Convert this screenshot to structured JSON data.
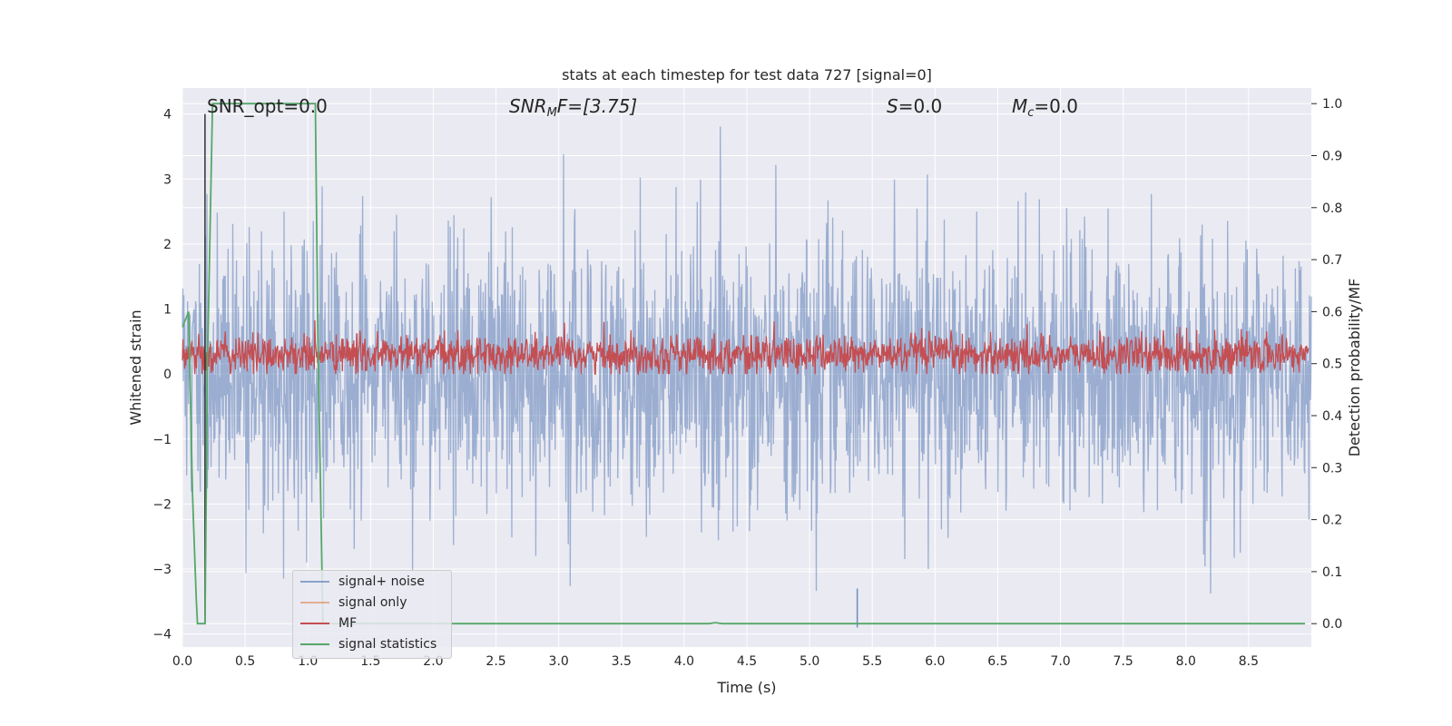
{
  "chart_data": {
    "type": "line",
    "title": "stats at each timestep for test data 727 [signal=0]",
    "xlabel": "Time (s)",
    "ylabel_left": "Whitened strain",
    "ylabel_right": "Detection probability/MF",
    "xlim": [
      0.0,
      9.0
    ],
    "ylim_left": [
      -4.2,
      4.4
    ],
    "ylim_right": [
      -0.045,
      1.03
    ],
    "x_ticks": [
      "0.0",
      "0.5",
      "1.0",
      "1.5",
      "2.0",
      "2.5",
      "3.0",
      "3.5",
      "4.0",
      "4.5",
      "5.0",
      "5.5",
      "6.0",
      "6.5",
      "7.0",
      "7.5",
      "8.0",
      "8.5"
    ],
    "y_ticks_left": [
      "4",
      "3",
      "2",
      "1",
      "0",
      "−1",
      "−2",
      "−3",
      "−4"
    ],
    "y_ticks_right": [
      "1.0",
      "0.9",
      "0.8",
      "0.7",
      "0.6",
      "0.5",
      "0.4",
      "0.3",
      "0.2",
      "0.1",
      "0.0"
    ],
    "grid": true,
    "legend_placement": "lower-left",
    "annotations": {
      "snr_opt": "SNR_opt=0.0",
      "snr_mf_main": "SNR",
      "snr_mf_sub": "M",
      "snr_mf_rest": "F=[3.75]",
      "s_main": "S",
      "s_rest": "=0.0",
      "mc_main": "M",
      "mc_sub": "c",
      "mc_rest": "=0.0"
    },
    "series": [
      {
        "name": "signal+ noise",
        "axis": "left",
        "color": "#4c72b0",
        "opacity": 0.5,
        "description_values": {
          "mean": 0.0,
          "std": 1.0,
          "x_range": [
            0.0,
            9.0
          ]
        }
      },
      {
        "name": "signal only",
        "axis": "left",
        "color": "#dd8452",
        "opacity": 0.5,
        "values": [
          0.0
        ]
      },
      {
        "name": "MF",
        "axis": "left",
        "color": "#c44e52",
        "description_values": {
          "mean": 0.3,
          "min": 0.0,
          "max": 0.9
        }
      },
      {
        "name": "signal statistics",
        "axis": "right",
        "color": "#55a868",
        "x": [
          0.0,
          0.05,
          0.08,
          0.11,
          0.12,
          0.18,
          0.2,
          0.24,
          0.26,
          1.06,
          1.08,
          1.12,
          1.2,
          4.2,
          4.25,
          4.3,
          8.95
        ],
        "y": [
          0.57,
          0.6,
          0.25,
          0.05,
          0.0,
          0.0,
          0.5,
          1.0,
          1.0,
          1.0,
          0.55,
          0.0,
          0.0,
          0.0,
          0.002,
          0.0,
          0.0
        ]
      }
    ],
    "vertical_line": {
      "x": 0.18,
      "color": "#333333"
    },
    "noise_spike": {
      "x": 5.38,
      "y_range": [
        -3.9,
        -3.3
      ]
    }
  },
  "legend": {
    "items": [
      {
        "label": "signal+ noise",
        "color": "#4c72b0",
        "opacity": 0.6
      },
      {
        "label": "signal only",
        "color": "#dd8452",
        "opacity": 0.6
      },
      {
        "label": "MF",
        "color": "#c44e52",
        "opacity": 1.0
      },
      {
        "label": "signal statistics",
        "color": "#55a868",
        "opacity": 1.0
      }
    ]
  },
  "colors": {
    "axes_bg": "#eaeaf2",
    "grid": "#ffffff",
    "text": "#262626"
  }
}
